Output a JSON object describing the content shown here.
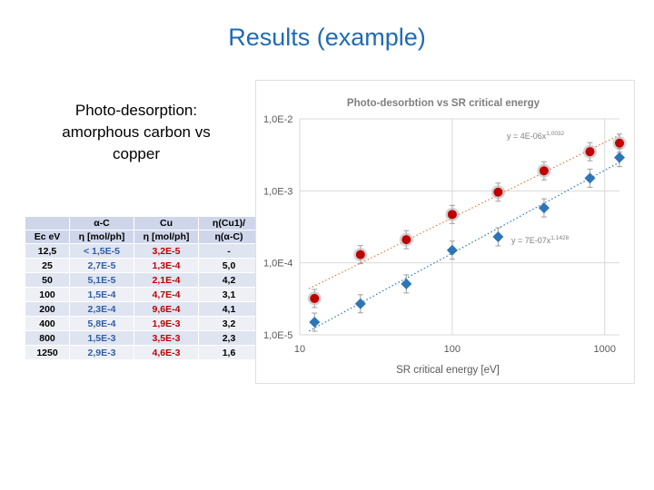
{
  "slide": {
    "title": "Results (example)",
    "subtitle": "Photo-desorption: amorphous carbon vs copper"
  },
  "table": {
    "header_row1": [
      "",
      "α-C",
      "Cu",
      "η(Cu1)/"
    ],
    "header_row2": [
      "Ec eV",
      "η [mol/ph]",
      "η [mol/ph]",
      "η(α-C)"
    ],
    "rows": [
      [
        "12,5",
        "< 1,5E-5",
        "3,2E-5",
        "-"
      ],
      [
        "25",
        "2,7E-5",
        "1,3E-4",
        "5,0"
      ],
      [
        "50",
        "5,1E-5",
        "2,1E-4",
        "4,2"
      ],
      [
        "100",
        "1,5E-4",
        "4,7E-4",
        "3,1"
      ],
      [
        "200",
        "2,3E-4",
        "9,6E-4",
        "4,1"
      ],
      [
        "400",
        "5,8E-4",
        "1,9E-3",
        "3,2"
      ],
      [
        "800",
        "1,5E-3",
        "3,5E-3",
        "2,3"
      ],
      [
        "1250",
        "2,9E-3",
        "4,6E-3",
        "1,6"
      ]
    ]
  },
  "chart_data": {
    "type": "scatter",
    "title": "Photo-desorbtion vs SR critical energy",
    "xlabel": "SR critical energy [eV]",
    "ylabel": "",
    "xscale": "log",
    "yscale": "log",
    "xlim": [
      10,
      1250
    ],
    "ylim": [
      1e-05,
      0.01
    ],
    "x_ticks": [
      "10",
      "100",
      "1000"
    ],
    "y_ticks": [
      "1,0E-5",
      "1,0E-4",
      "1,0E-3",
      "1,0E-2"
    ],
    "grid": true,
    "series": [
      {
        "marker": "circle",
        "color": "#c00000",
        "trendline_color": "#e07b39",
        "x": [
          12.5,
          25,
          50,
          100,
          200,
          400,
          800,
          1250
        ],
        "y": [
          3.2e-05,
          0.00013,
          0.00021,
          0.00047,
          0.00096,
          0.0019,
          0.0035,
          0.0046
        ],
        "trendline_label": "y = 4E-06x",
        "trendline_exp": "1,0032"
      },
      {
        "marker": "diamond",
        "color": "#2e75b6",
        "trendline_color": "#2e75b6",
        "x": [
          12.5,
          25,
          50,
          100,
          200,
          400,
          800,
          1250
        ],
        "y": [
          1.5e-05,
          2.7e-05,
          5.1e-05,
          0.00015,
          0.00023,
          0.00058,
          0.0015,
          0.0029
        ],
        "trendline_label": "y = 7E-07x",
        "trendline_exp": "1,1428"
      }
    ]
  }
}
